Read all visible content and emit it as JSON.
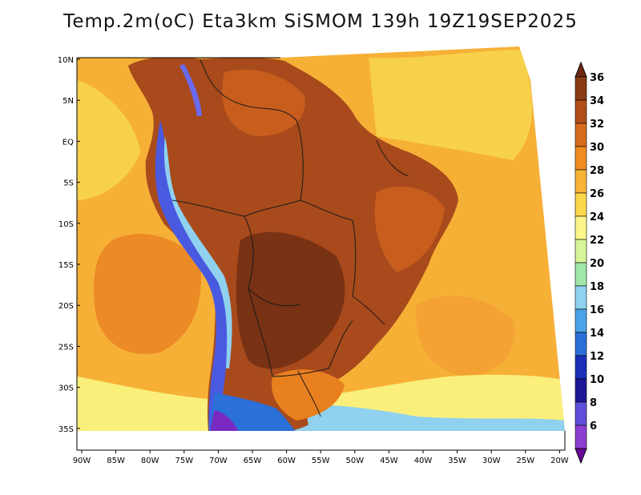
{
  "title": "Temp.2m(oC) Eta3km SiSMOM 139h 19Z19SEP2025",
  "lat_labels": [
    "10N",
    "5N",
    "EQ",
    "5S",
    "10S",
    "15S",
    "20S",
    "25S",
    "30S",
    "35S"
  ],
  "lon_labels": [
    "90W",
    "85W",
    "80W",
    "75W",
    "70W",
    "65W",
    "60W",
    "55W",
    "50W",
    "45W",
    "40W",
    "35W",
    "30W",
    "25W",
    "20W"
  ],
  "colorbar": {
    "labels": [
      "36",
      "34",
      "32",
      "30",
      "28",
      "26",
      "24",
      "22",
      "20",
      "18",
      "16",
      "14",
      "12",
      "10",
      "8",
      "6"
    ],
    "colors": [
      "#6e2a10",
      "#8a3a14",
      "#b14e19",
      "#d66b1e",
      "#f08c22",
      "#f7b437",
      "#fbd84b",
      "#fbf68a",
      "#d7f59a",
      "#9fe6a8",
      "#8fd1ef",
      "#4aa3e8",
      "#2b6fd8",
      "#1a2fb8",
      "#1d1896",
      "#5f4fd9",
      "#8b3fcf",
      "#6a0a9a"
    ]
  },
  "fields": {
    "ocean_warm": "#f6b036",
    "ocean_mid": "#f3a233",
    "ocean_hot": "#ec8a26",
    "ocean_cool": "#f8d14a",
    "ocean_pale": "#fbef7c",
    "land_hot": "#a84a1c",
    "land_veryhot": "#7a3214",
    "land_warm": "#c85d1e",
    "land_mild": "#e9801f",
    "andes_cold": "#4a5ae0",
    "andes_cold2": "#6a6af0",
    "andes_ice": "#8fd1ef",
    "south_cold": "#2b6fd8",
    "south_purple": "#7a2ac0",
    "border": "#1a1a1a"
  }
}
